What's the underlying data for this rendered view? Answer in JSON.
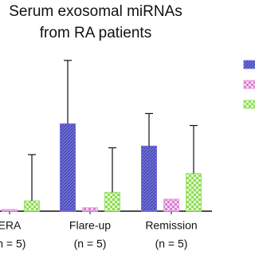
{
  "chart_data": {
    "type": "bar",
    "title": [
      "Serum exosomal miRNAs",
      "from RA patients"
    ],
    "categories": [
      "ERA",
      "Flare-up",
      "Remission"
    ],
    "category_notes": [
      "(n = 5)",
      "(n = 5)",
      "(n = 5)"
    ],
    "ylim": [
      0,
      100
    ],
    "series": [
      {
        "color": "#6f6fd6",
        "pattern": "hatch",
        "values": [
          null,
          51,
          38
        ],
        "errors": [
          null,
          37,
          19
        ]
      },
      {
        "color": "#e79be0",
        "pattern": "check",
        "values": [
          1,
          2,
          7
        ],
        "errors": [
          null,
          null,
          null
        ]
      },
      {
        "color": "#9be36a",
        "pattern": "check",
        "values": [
          6,
          11,
          22
        ],
        "errors": [
          27,
          26,
          28
        ]
      }
    ]
  }
}
